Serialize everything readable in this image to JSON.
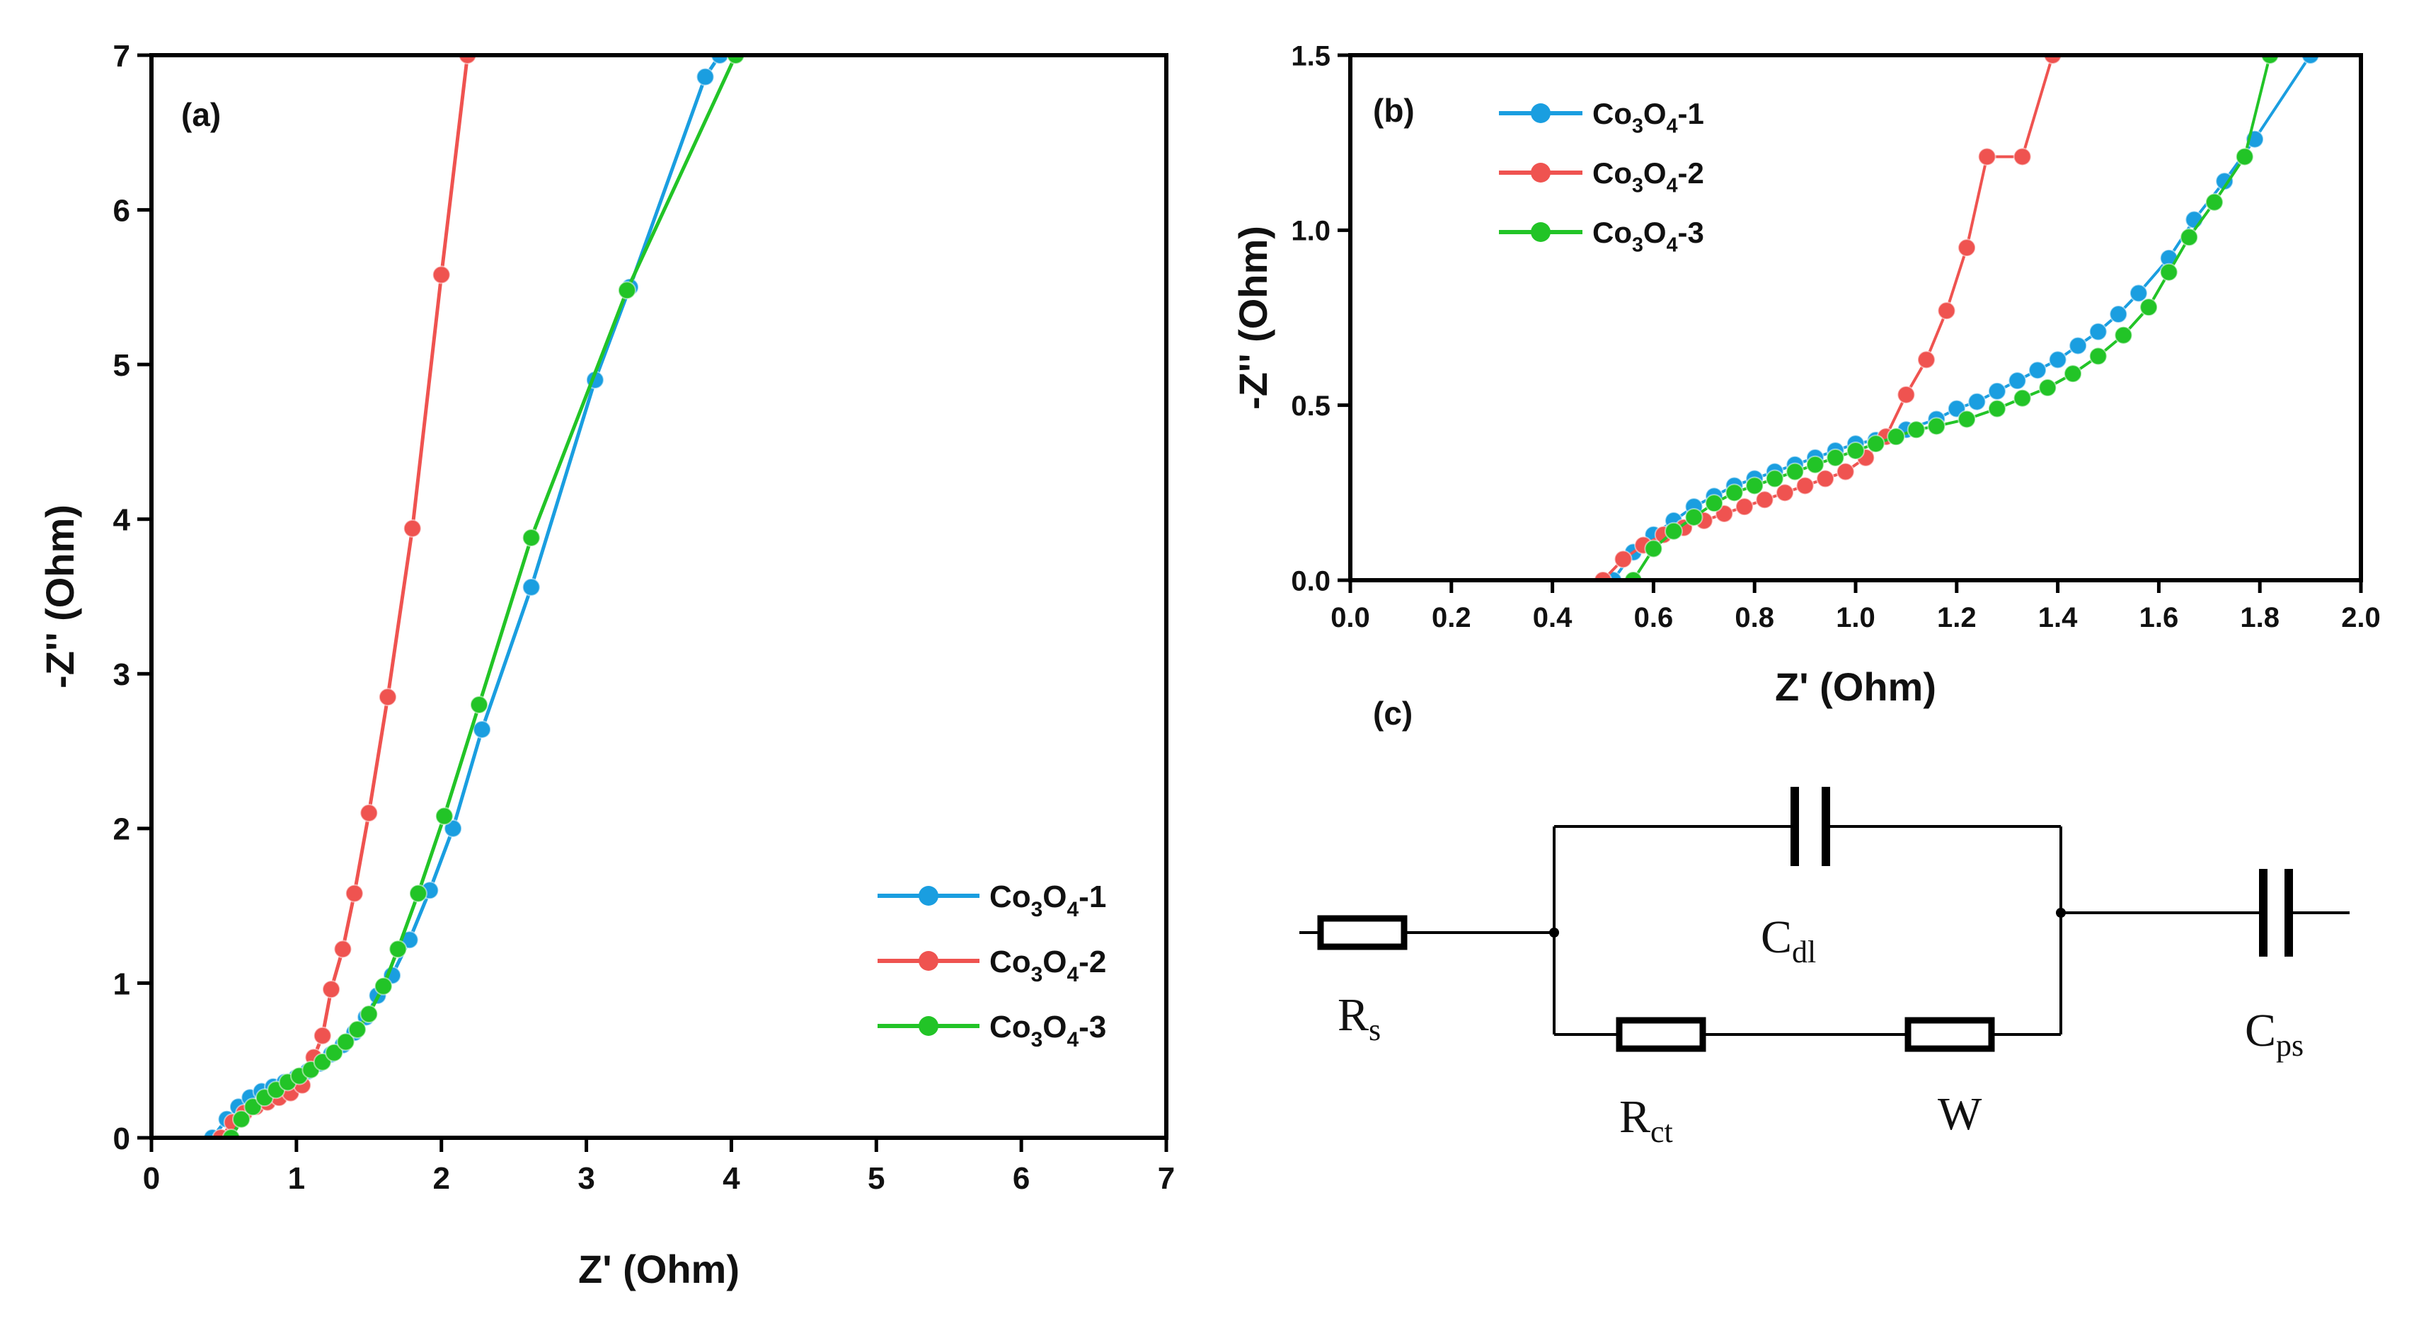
{
  "chart_data": [
    {
      "panel": "(a)",
      "type": "scatter",
      "xlabel": "Z' (Ohm)",
      "ylabel": "-Z'' (Ohm)",
      "xlim": [
        0,
        7
      ],
      "ylim": [
        0,
        7
      ],
      "xticks": [
        "0",
        "1",
        "2",
        "3",
        "4",
        "5",
        "6",
        "7"
      ],
      "yticks": [
        "0",
        "1",
        "2",
        "3",
        "4",
        "5",
        "6",
        "7"
      ],
      "legend_position": "lower-right",
      "series": [
        {
          "name": "Co3O4-1",
          "legend_base": "Co",
          "sub1": "3",
          "mid": "O",
          "sub2": "4",
          "suffix": "-1",
          "color": "#1a9ee0",
          "x": [
            0.42,
            0.52,
            0.6,
            0.68,
            0.76,
            0.84,
            0.92,
            1.0,
            1.08,
            1.16,
            1.24,
            1.32,
            1.4,
            1.48,
            1.56,
            1.66,
            1.78,
            1.92,
            2.08,
            2.28,
            2.62,
            3.06,
            3.3,
            3.82,
            3.92
          ],
          "y": [
            0.0,
            0.12,
            0.2,
            0.26,
            0.3,
            0.33,
            0.36,
            0.39,
            0.43,
            0.48,
            0.54,
            0.6,
            0.68,
            0.78,
            0.92,
            1.05,
            1.28,
            1.6,
            2.0,
            2.64,
            3.56,
            4.9,
            5.5,
            6.86,
            7.0
          ]
        },
        {
          "name": "Co3O4-2",
          "legend_base": "Co",
          "sub1": "3",
          "mid": "O",
          "sub2": "4",
          "suffix": "-2",
          "color": "#ef5350",
          "x": [
            0.48,
            0.56,
            0.64,
            0.72,
            0.8,
            0.88,
            0.96,
            1.04,
            1.12,
            1.18,
            1.24,
            1.32,
            1.4,
            1.5,
            1.63,
            1.8,
            2.0,
            2.18
          ],
          "y": [
            0.0,
            0.1,
            0.16,
            0.2,
            0.23,
            0.26,
            0.29,
            0.34,
            0.52,
            0.66,
            0.96,
            1.22,
            1.58,
            2.1,
            2.85,
            3.94,
            5.58,
            7.0
          ],
          "y_label_note": "markers"
        },
        {
          "name": "Co3O4-3",
          "legend_base": "Co",
          "sub1": "3",
          "mid": "O",
          "sub2": "4",
          "suffix": "-3",
          "color": "#22c427",
          "x": [
            0.55,
            0.62,
            0.7,
            0.78,
            0.86,
            0.94,
            1.02,
            1.1,
            1.18,
            1.26,
            1.34,
            1.42,
            1.5,
            1.6,
            1.7,
            1.84,
            2.02,
            2.26,
            2.62,
            3.28,
            4.03
          ],
          "y": [
            0.0,
            0.12,
            0.2,
            0.26,
            0.31,
            0.36,
            0.4,
            0.44,
            0.49,
            0.55,
            0.62,
            0.7,
            0.8,
            0.98,
            1.22,
            1.58,
            2.08,
            2.8,
            3.88,
            5.48,
            7.0
          ]
        }
      ]
    },
    {
      "panel": "(b)",
      "type": "scatter",
      "xlabel": "Z' (Ohm)",
      "ylabel": "-Z'' (Ohm)",
      "xlim": [
        0.0,
        2.0
      ],
      "ylim": [
        0.0,
        1.5
      ],
      "xticks": [
        "0.0",
        "0.2",
        "0.4",
        "0.6",
        "0.8",
        "1.0",
        "1.2",
        "1.4",
        "1.6",
        "1.8",
        "2.0"
      ],
      "yticks": [
        "0.0",
        "0.5",
        "1.0",
        "1.5"
      ],
      "legend_position": "top-left",
      "series": [
        {
          "name": "Co3O4-1",
          "color": "#1a9ee0",
          "x": [
            0.52,
            0.56,
            0.6,
            0.64,
            0.68,
            0.72,
            0.76,
            0.8,
            0.84,
            0.88,
            0.92,
            0.96,
            1.0,
            1.04,
            1.1,
            1.16,
            1.2,
            1.24,
            1.28,
            1.32,
            1.36,
            1.4,
            1.44,
            1.48,
            1.52,
            1.56,
            1.62,
            1.67,
            1.73,
            1.79,
            1.9
          ],
          "y": [
            0.0,
            0.08,
            0.13,
            0.17,
            0.21,
            0.24,
            0.27,
            0.29,
            0.31,
            0.33,
            0.35,
            0.37,
            0.39,
            0.4,
            0.43,
            0.46,
            0.49,
            0.51,
            0.54,
            0.57,
            0.6,
            0.63,
            0.67,
            0.71,
            0.76,
            0.82,
            0.92,
            1.03,
            1.14,
            1.26,
            1.5
          ]
        },
        {
          "name": "Co3O4-2",
          "color": "#ef5350",
          "x": [
            0.5,
            0.54,
            0.58,
            0.62,
            0.66,
            0.7,
            0.74,
            0.78,
            0.82,
            0.86,
            0.9,
            0.94,
            0.98,
            1.02,
            1.06,
            1.1,
            1.14,
            1.18,
            1.22,
            1.26,
            1.33,
            1.39
          ],
          "y": [
            0.0,
            0.06,
            0.1,
            0.13,
            0.15,
            0.17,
            0.19,
            0.21,
            0.23,
            0.25,
            0.27,
            0.29,
            0.31,
            0.35,
            0.41,
            0.53,
            0.63,
            0.77,
            0.95,
            1.21,
            1.21,
            1.5
          ]
        },
        {
          "name": "Co3O4-3",
          "color": "#22c427",
          "x": [
            0.56,
            0.6,
            0.64,
            0.68,
            0.72,
            0.76,
            0.8,
            0.84,
            0.88,
            0.92,
            0.96,
            1.0,
            1.04,
            1.08,
            1.12,
            1.16,
            1.22,
            1.28,
            1.33,
            1.38,
            1.43,
            1.48,
            1.53,
            1.58,
            1.62,
            1.66,
            1.71,
            1.77,
            1.82
          ],
          "y": [
            0.0,
            0.09,
            0.14,
            0.18,
            0.22,
            0.25,
            0.27,
            0.29,
            0.31,
            0.33,
            0.35,
            0.37,
            0.39,
            0.41,
            0.43,
            0.44,
            0.46,
            0.49,
            0.52,
            0.55,
            0.59,
            0.64,
            0.7,
            0.78,
            0.88,
            0.98,
            1.08,
            1.21,
            1.5
          ]
        }
      ]
    }
  ],
  "panels": {
    "a": "(a)",
    "b": "(b)",
    "c": "(c)"
  },
  "circuit": {
    "rs": {
      "main": "R",
      "sub": "s"
    },
    "cdl": {
      "main": "C",
      "sub": "dl"
    },
    "rct": {
      "main": "R",
      "sub": "ct"
    },
    "w": {
      "main": "W",
      "sub": ""
    },
    "cps": {
      "main": "C",
      "sub": "ps"
    }
  },
  "legend": [
    {
      "base": "Co",
      "sub1": "3",
      "mid": "O",
      "sub2": "4",
      "suffix": "-1",
      "color": "#1a9ee0"
    },
    {
      "base": "Co",
      "sub1": "3",
      "mid": "O",
      "sub2": "4",
      "suffix": "-2",
      "color": "#ef5350"
    },
    {
      "base": "Co",
      "sub1": "3",
      "mid": "O",
      "sub2": "4",
      "suffix": "-3",
      "color": "#22c427"
    }
  ]
}
